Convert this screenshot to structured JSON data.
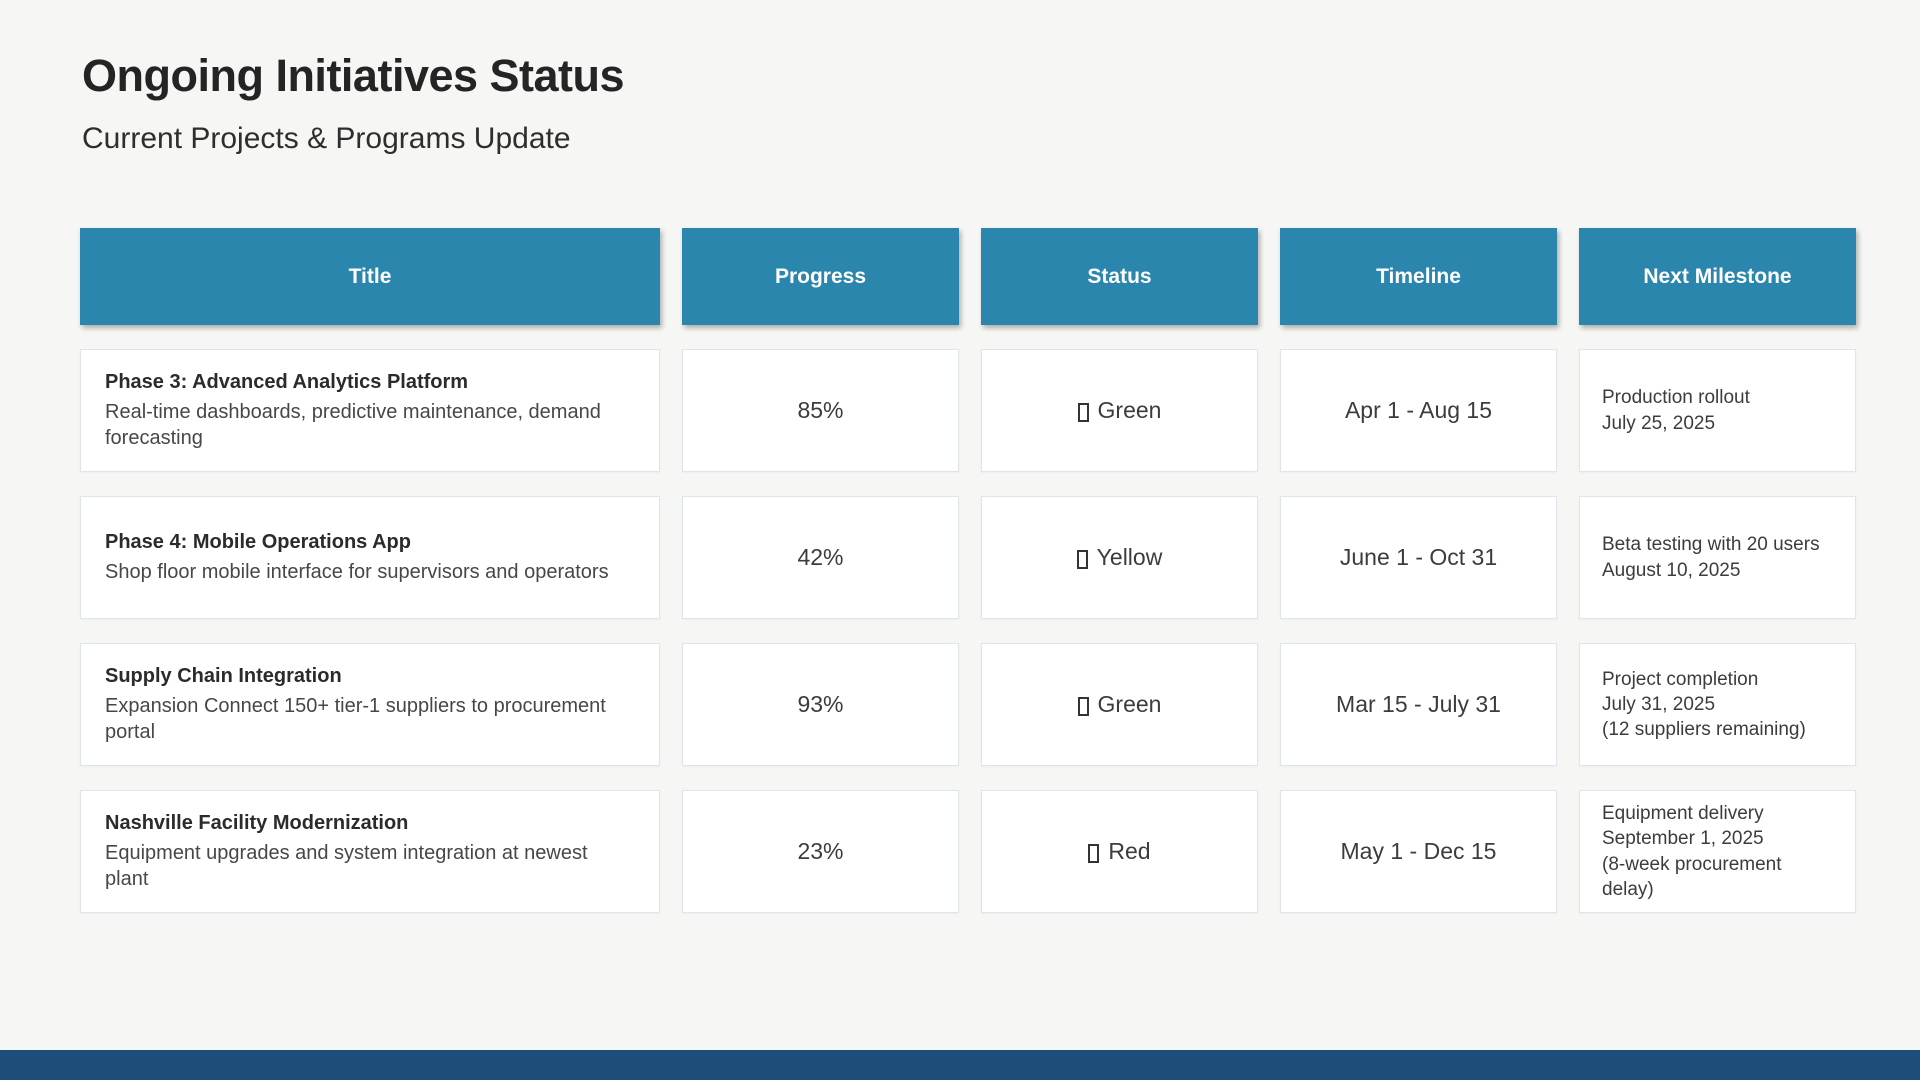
{
  "page": {
    "title": "Ongoing Initiatives Status",
    "subtitle": "Current Projects & Programs Update"
  },
  "colors": {
    "header_bg": "#2b86ad",
    "footer_bar": "#1d4e79",
    "page_bg": "#f6f6f4",
    "cell_bg": "#ffffff",
    "cell_border": "#dde6ec"
  },
  "table": {
    "columns": [
      "Title",
      "Progress",
      "Status",
      "Timeline",
      "Next Milestone"
    ],
    "status_icon": "missing-glyph-box",
    "rows": [
      {
        "title": "Phase 3: Advanced Analytics Platform",
        "description": "Real-time dashboards, predictive maintenance, demand forecasting",
        "progress": "85%",
        "status": "Green",
        "timeline": "Apr 1 - Aug 15",
        "milestone": [
          "Production rollout",
          "July 25, 2025"
        ]
      },
      {
        "title": "Phase 4: Mobile Operations App",
        "description": "Shop floor mobile interface for supervisors and operators",
        "progress": "42%",
        "status": "Yellow",
        "timeline": "June 1 - Oct 31",
        "milestone": [
          "Beta testing with 20 users",
          "August 10, 2025"
        ]
      },
      {
        "title": "Supply Chain Integration",
        "description": "Expansion Connect 150+ tier-1 suppliers to procurement portal",
        "progress": "93%",
        "status": "Green",
        "timeline": "Mar 15 - July 31",
        "milestone": [
          "Project completion",
          "July 31, 2025",
          "(12 suppliers remaining)"
        ]
      },
      {
        "title": "Nashville Facility Modernization",
        "description": "Equipment upgrades and system integration at newest plant",
        "progress": "23%",
        "status": "Red",
        "timeline": "May 1 - Dec 15",
        "milestone": [
          "Equipment delivery",
          "September 1, 2025",
          "(8-week procurement delay)"
        ]
      }
    ]
  }
}
